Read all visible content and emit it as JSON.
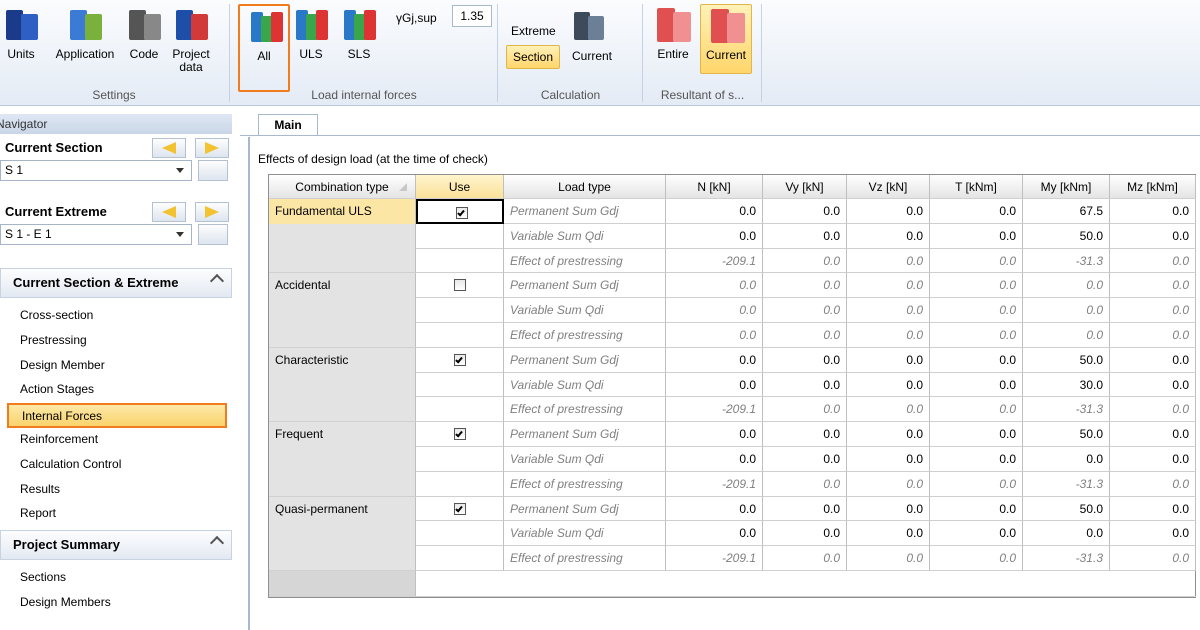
{
  "ribbon": {
    "groups": [
      {
        "label": "Settings",
        "buttons": [
          {
            "label": "Units"
          },
          {
            "label": "Application"
          },
          {
            "label": "Code"
          },
          {
            "label": "Project data"
          }
        ]
      },
      {
        "label": "Load internal forces",
        "buttons": [
          {
            "label": "All",
            "active": true
          },
          {
            "label": "ULS"
          },
          {
            "label": "SLS"
          }
        ],
        "parameter": {
          "label": "γGj,sup",
          "value": "1.35"
        }
      },
      {
        "label": "Calculation",
        "caption": "Extreme",
        "buttons": [
          {
            "label": "Section",
            "active": true
          },
          {
            "label": "Current"
          }
        ]
      },
      {
        "label": "Resultant of s...",
        "buttons": [
          {
            "label": "Entire"
          },
          {
            "label": "Current",
            "active": true
          }
        ]
      }
    ]
  },
  "navigator": {
    "title": "Navigator",
    "current_section": {
      "label": "Current Section",
      "value": "S 1"
    },
    "current_extreme": {
      "label": "Current Extreme",
      "value": "S 1 - E 1"
    },
    "panels": [
      {
        "title": "Current Section & Extreme",
        "items": [
          {
            "label": "Cross-section"
          },
          {
            "label": "Prestressing"
          },
          {
            "label": "Design Member"
          },
          {
            "label": "Action Stages"
          },
          {
            "label": "Internal Forces",
            "selected": true
          },
          {
            "label": "Reinforcement"
          },
          {
            "label": "Calculation Control"
          },
          {
            "label": "Results"
          },
          {
            "label": "Report"
          }
        ]
      },
      {
        "title": "Project Summary",
        "items": [
          {
            "label": "Sections"
          },
          {
            "label": "Design Members"
          }
        ]
      }
    ]
  },
  "tab": "Main",
  "table": {
    "caption": "Effects of design load (at the time of check)",
    "columns": [
      "Combination type",
      "Use",
      "Load type",
      "N [kN]",
      "Vy [kN]",
      "Vz [kN]",
      "T [kNm]",
      "My [kNm]",
      "Mz [kNm]"
    ],
    "rows": [
      {
        "combination": "Fundamental ULS",
        "use": true,
        "loads": [
          {
            "type": "Permanent Sum Gdj",
            "values": [
              "0.0",
              "0.0",
              "0.0",
              "0.0",
              "67.5",
              "0.0"
            ]
          },
          {
            "type": "Variable Sum Qdi",
            "values": [
              "0.0",
              "0.0",
              "0.0",
              "0.0",
              "50.0",
              "0.0"
            ]
          },
          {
            "type": "Effect of prestressing",
            "values": [
              "-209.1",
              "0.0",
              "0.0",
              "0.0",
              "-31.3",
              "0.0"
            ]
          }
        ]
      },
      {
        "combination": "Accidental",
        "use": false,
        "loads": [
          {
            "type": "Permanent Sum Gdj",
            "values": [
              "0.0",
              "0.0",
              "0.0",
              "0.0",
              "0.0",
              "0.0"
            ]
          },
          {
            "type": "Variable Sum Qdi",
            "values": [
              "0.0",
              "0.0",
              "0.0",
              "0.0",
              "0.0",
              "0.0"
            ]
          },
          {
            "type": "Effect of prestressing",
            "values": [
              "0.0",
              "0.0",
              "0.0",
              "0.0",
              "0.0",
              "0.0"
            ]
          }
        ]
      },
      {
        "combination": "Characteristic",
        "use": true,
        "loads": [
          {
            "type": "Permanent Sum Gdj",
            "values": [
              "0.0",
              "0.0",
              "0.0",
              "0.0",
              "50.0",
              "0.0"
            ]
          },
          {
            "type": "Variable Sum Qdi",
            "values": [
              "0.0",
              "0.0",
              "0.0",
              "0.0",
              "30.0",
              "0.0"
            ]
          },
          {
            "type": "Effect of prestressing",
            "values": [
              "-209.1",
              "0.0",
              "0.0",
              "0.0",
              "-31.3",
              "0.0"
            ]
          }
        ]
      },
      {
        "combination": "Frequent",
        "use": true,
        "loads": [
          {
            "type": "Permanent Sum Gdj",
            "values": [
              "0.0",
              "0.0",
              "0.0",
              "0.0",
              "50.0",
              "0.0"
            ]
          },
          {
            "type": "Variable Sum Qdi",
            "values": [
              "0.0",
              "0.0",
              "0.0",
              "0.0",
              "0.0",
              "0.0"
            ]
          },
          {
            "type": "Effect of prestressing",
            "values": [
              "-209.1",
              "0.0",
              "0.0",
              "0.0",
              "-31.3",
              "0.0"
            ]
          }
        ]
      },
      {
        "combination": "Quasi-permanent",
        "use": true,
        "loads": [
          {
            "type": "Permanent Sum Gdj",
            "values": [
              "0.0",
              "0.0",
              "0.0",
              "0.0",
              "50.0",
              "0.0"
            ]
          },
          {
            "type": "Variable Sum Qdi",
            "values": [
              "0.0",
              "0.0",
              "0.0",
              "0.0",
              "0.0",
              "0.0"
            ]
          },
          {
            "type": "Effect of prestressing",
            "values": [
              "-209.1",
              "0.0",
              "0.0",
              "0.0",
              "-31.3",
              "0.0"
            ]
          }
        ]
      }
    ]
  }
}
